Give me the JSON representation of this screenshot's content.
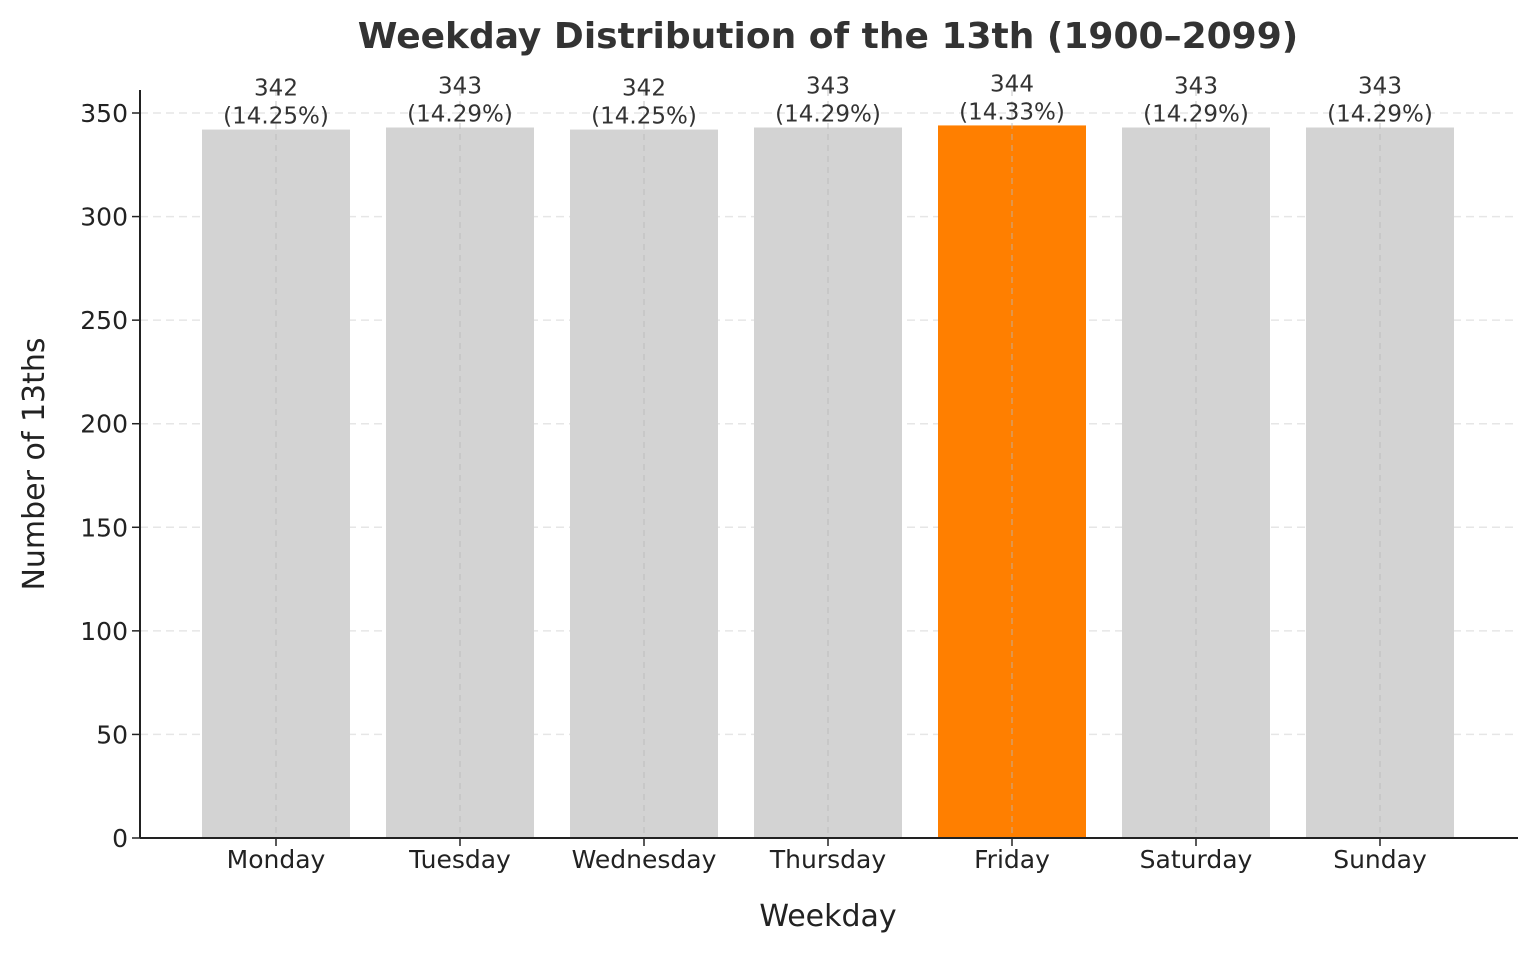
{
  "chart_data": {
    "type": "bar",
    "title": "Weekday Distribution of the 13th (1900–2099)",
    "xlabel": "Weekday",
    "ylabel": "Number of 13ths",
    "categories": [
      "Monday",
      "Tuesday",
      "Wednesday",
      "Thursday",
      "Friday",
      "Saturday",
      "Sunday"
    ],
    "values": [
      342,
      343,
      342,
      343,
      344,
      343,
      343
    ],
    "percent_labels": [
      "(14.25%)",
      "(14.29%)",
      "(14.25%)",
      "(14.29%)",
      "(14.33%)",
      "(14.29%)",
      "(14.29%)"
    ],
    "ylim": [
      0,
      360
    ],
    "yticks": [
      0,
      50,
      100,
      150,
      200,
      250,
      300,
      350
    ],
    "grid": true,
    "colors": {
      "bar": "#d3d3d3",
      "highlight": "#ff7f00",
      "highlight_category": "Friday",
      "grid": "#e6e6e6",
      "axis": "#222222"
    }
  }
}
